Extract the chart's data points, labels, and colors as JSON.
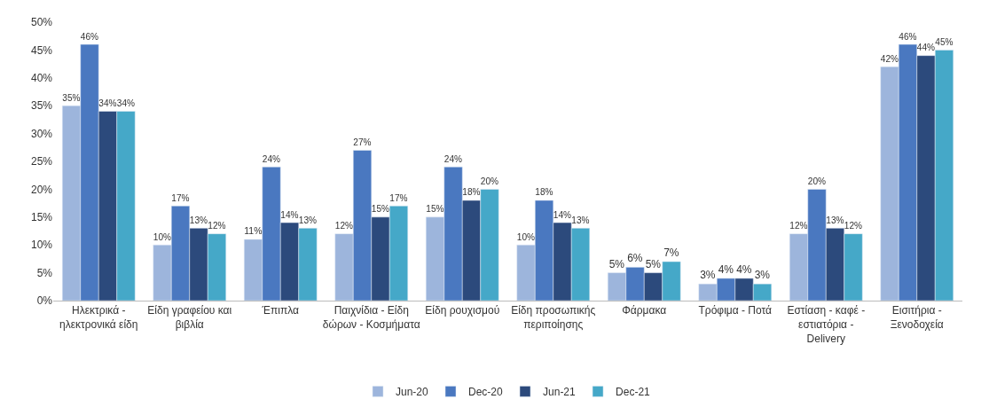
{
  "chart_data": {
    "type": "bar",
    "categories": [
      "Ηλεκτρικά - ηλεκτρονικά είδη",
      "Είδη γραφείου και βιβλία",
      "Έπιπλα",
      "Παιχνίδια - Είδη δώρων - Κοσμήματα",
      "Είδη ρουχισμού",
      "Είδη προσωπικής περιποίησης",
      "Φάρμακα",
      "Τρόφιμα - Ποτά",
      "Εστίαση - καφέ - εστιατόρια - Delivery",
      "Εισιτήρια - Ξενοδοχεία"
    ],
    "series": [
      {
        "name": "Jun-20",
        "color": "#9db5dc",
        "values": [
          35,
          10,
          11,
          12,
          15,
          10,
          5,
          3,
          12,
          42
        ],
        "value_labels": [
          "35%",
          "10%",
          "11%",
          "12%",
          "15%",
          "10%",
          "5%",
          "3%",
          "12%",
          "42%"
        ]
      },
      {
        "name": "Dec-20",
        "color": "#4a78c0",
        "values": [
          46,
          17,
          24,
          27,
          24,
          18,
          6,
          4,
          20,
          46
        ],
        "value_labels": [
          "46%",
          "17%",
          "24%",
          "27%",
          "24%",
          "18%",
          "6%",
          "4%",
          "20%",
          "46%"
        ]
      },
      {
        "name": "Jun-21",
        "color": "#2c4a7c",
        "values": [
          34,
          13,
          14,
          15,
          18,
          14,
          5,
          4,
          13,
          44
        ],
        "value_labels": [
          "34%",
          "13%",
          "14%",
          "15%",
          "18%",
          "14%",
          "5%",
          "4%",
          "13%",
          "44%"
        ]
      },
      {
        "name": "Dec-21",
        "color": "#45a8c8",
        "values": [
          34,
          12,
          13,
          17,
          20,
          13,
          7,
          3,
          12,
          45
        ],
        "value_labels": [
          "34%",
          "12%",
          "13%",
          "17%",
          "20%",
          "13%",
          "7%",
          "3%",
          "12%",
          "45%"
        ]
      }
    ],
    "ylim": [
      0,
      50
    ],
    "yticks": [
      {
        "value": 0,
        "label": "0%"
      },
      {
        "value": 5,
        "label": "5%"
      },
      {
        "value": 10,
        "label": "10%"
      },
      {
        "value": 15,
        "label": "15%"
      },
      {
        "value": 20,
        "label": "20%"
      },
      {
        "value": 25,
        "label": "25%"
      },
      {
        "value": 30,
        "label": "30%"
      },
      {
        "value": 35,
        "label": "35%"
      },
      {
        "value": 40,
        "label": "40%"
      },
      {
        "value": 45,
        "label": "45%"
      },
      {
        "value": 50,
        "label": "50%"
      }
    ],
    "grid": false,
    "legend": "bottom"
  }
}
